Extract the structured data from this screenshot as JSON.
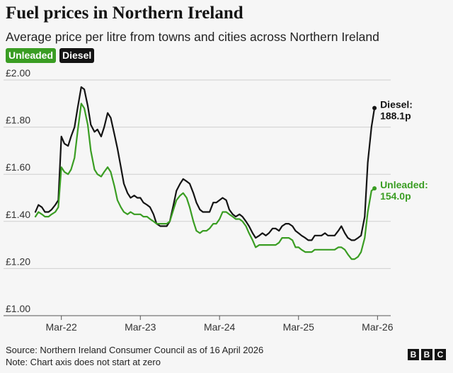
{
  "title": "Fuel prices in Northern Ireland",
  "subtitle": "Average price per litre from towns and cities across Northern Ireland",
  "legend": [
    {
      "label": "Unleaded",
      "color": "#3a9d23"
    },
    {
      "label": "Diesel",
      "color": "#141414"
    }
  ],
  "footer": {
    "source": "Source: Northern Ireland Consumer Council as of 16 April 2026",
    "note": "Note: Chart axis does not start at zero"
  },
  "logo": [
    "B",
    "B",
    "C"
  ],
  "chart_data": {
    "type": "line",
    "title": "Fuel prices in Northern Ireland",
    "subtitle": "Average price per litre from towns and cities across Northern Ireland",
    "xlabel": "",
    "ylabel": "",
    "ylim": [
      1.0,
      2.0
    ],
    "xlim": [
      "2021-11-01",
      "2026-05-01"
    ],
    "y_ticks": [
      {
        "value": 1.0,
        "label": "£1.00"
      },
      {
        "value": 1.2,
        "label": "£1.20"
      },
      {
        "value": 1.4,
        "label": "£1.40"
      },
      {
        "value": 1.6,
        "label": "£1.60"
      },
      {
        "value": 1.8,
        "label": "£1.80"
      },
      {
        "value": 2.0,
        "label": "£2.00"
      }
    ],
    "x_ticks": [
      {
        "value": "2022-03-01",
        "label": "Mar-22"
      },
      {
        "value": "2023-03-01",
        "label": "Mar-23"
      },
      {
        "value": "2024-03-01",
        "label": "Mar-24"
      },
      {
        "value": "2025-03-01",
        "label": "Mar-25"
      },
      {
        "value": "2026-03-01",
        "label": "Mar-26"
      }
    ],
    "grid": "horizontal",
    "series": [
      {
        "name": "Diesel",
        "color": "#141414",
        "end_label": [
          "Diesel:",
          "188.1p"
        ],
        "points": [
          [
            "2021-11-01",
            1.44
          ],
          [
            "2021-11-15",
            1.47
          ],
          [
            "2021-12-01",
            1.46
          ],
          [
            "2021-12-15",
            1.44
          ],
          [
            "2022-01-01",
            1.44
          ],
          [
            "2022-01-15",
            1.45
          ],
          [
            "2022-02-01",
            1.47
          ],
          [
            "2022-02-15",
            1.49
          ],
          [
            "2022-03-01",
            1.76
          ],
          [
            "2022-03-15",
            1.73
          ],
          [
            "2022-04-01",
            1.72
          ],
          [
            "2022-04-15",
            1.76
          ],
          [
            "2022-05-01",
            1.8
          ],
          [
            "2022-05-15",
            1.88
          ],
          [
            "2022-06-01",
            1.97
          ],
          [
            "2022-06-15",
            1.96
          ],
          [
            "2022-07-01",
            1.89
          ],
          [
            "2022-07-15",
            1.81
          ],
          [
            "2022-08-01",
            1.78
          ],
          [
            "2022-08-15",
            1.79
          ],
          [
            "2022-09-01",
            1.76
          ],
          [
            "2022-09-15",
            1.8
          ],
          [
            "2022-10-01",
            1.86
          ],
          [
            "2022-10-15",
            1.84
          ],
          [
            "2022-11-01",
            1.77
          ],
          [
            "2022-11-15",
            1.71
          ],
          [
            "2022-12-01",
            1.63
          ],
          [
            "2022-12-15",
            1.56
          ],
          [
            "2023-01-01",
            1.52
          ],
          [
            "2023-01-15",
            1.5
          ],
          [
            "2023-02-01",
            1.51
          ],
          [
            "2023-02-15",
            1.5
          ],
          [
            "2023-03-01",
            1.5
          ],
          [
            "2023-03-15",
            1.48
          ],
          [
            "2023-04-01",
            1.47
          ],
          [
            "2023-04-15",
            1.46
          ],
          [
            "2023-05-01",
            1.43
          ],
          [
            "2023-05-15",
            1.39
          ],
          [
            "2023-06-01",
            1.38
          ],
          [
            "2023-06-15",
            1.38
          ],
          [
            "2023-07-01",
            1.38
          ],
          [
            "2023-07-15",
            1.4
          ],
          [
            "2023-08-01",
            1.47
          ],
          [
            "2023-08-15",
            1.53
          ],
          [
            "2023-09-01",
            1.56
          ],
          [
            "2023-09-15",
            1.58
          ],
          [
            "2023-10-01",
            1.57
          ],
          [
            "2023-10-15",
            1.56
          ],
          [
            "2023-11-01",
            1.52
          ],
          [
            "2023-11-15",
            1.48
          ],
          [
            "2023-12-01",
            1.45
          ],
          [
            "2023-12-15",
            1.44
          ],
          [
            "2024-01-01",
            1.44
          ],
          [
            "2024-01-15",
            1.44
          ],
          [
            "2024-02-01",
            1.48
          ],
          [
            "2024-02-15",
            1.48
          ],
          [
            "2024-03-01",
            1.49
          ],
          [
            "2024-03-15",
            1.5
          ],
          [
            "2024-04-01",
            1.49
          ],
          [
            "2024-04-15",
            1.45
          ],
          [
            "2024-05-01",
            1.43
          ],
          [
            "2024-05-15",
            1.42
          ],
          [
            "2024-06-01",
            1.43
          ],
          [
            "2024-06-15",
            1.42
          ],
          [
            "2024-07-01",
            1.4
          ],
          [
            "2024-07-15",
            1.38
          ],
          [
            "2024-08-01",
            1.35
          ],
          [
            "2024-08-15",
            1.33
          ],
          [
            "2024-09-01",
            1.34
          ],
          [
            "2024-09-15",
            1.35
          ],
          [
            "2024-10-01",
            1.34
          ],
          [
            "2024-10-15",
            1.35
          ],
          [
            "2024-11-01",
            1.37
          ],
          [
            "2024-11-15",
            1.37
          ],
          [
            "2024-12-01",
            1.36
          ],
          [
            "2024-12-15",
            1.38
          ],
          [
            "2025-01-01",
            1.39
          ],
          [
            "2025-01-15",
            1.39
          ],
          [
            "2025-02-01",
            1.38
          ],
          [
            "2025-02-15",
            1.36
          ],
          [
            "2025-03-01",
            1.35
          ],
          [
            "2025-03-15",
            1.34
          ],
          [
            "2025-04-01",
            1.33
          ],
          [
            "2025-04-15",
            1.32
          ],
          [
            "2025-05-01",
            1.32
          ],
          [
            "2025-05-15",
            1.34
          ],
          [
            "2025-06-01",
            1.34
          ],
          [
            "2025-06-15",
            1.34
          ],
          [
            "2025-07-01",
            1.35
          ],
          [
            "2025-07-15",
            1.34
          ],
          [
            "2025-08-01",
            1.34
          ],
          [
            "2025-08-15",
            1.34
          ],
          [
            "2025-09-01",
            1.36
          ],
          [
            "2025-09-15",
            1.38
          ],
          [
            "2025-10-01",
            1.35
          ],
          [
            "2025-10-15",
            1.33
          ],
          [
            "2025-11-01",
            1.32
          ],
          [
            "2025-11-15",
            1.32
          ],
          [
            "2025-12-01",
            1.33
          ],
          [
            "2025-12-15",
            1.34
          ],
          [
            "2026-01-01",
            1.42
          ],
          [
            "2026-01-15",
            1.65
          ],
          [
            "2026-02-01",
            1.8
          ],
          [
            "2026-02-15",
            1.881
          ]
        ]
      },
      {
        "name": "Unleaded",
        "color": "#3a9d23",
        "end_label": [
          "Unleaded:",
          "154.0p"
        ],
        "points": [
          [
            "2021-11-01",
            1.42
          ],
          [
            "2021-11-15",
            1.44
          ],
          [
            "2021-12-01",
            1.43
          ],
          [
            "2021-12-15",
            1.42
          ],
          [
            "2022-01-01",
            1.42
          ],
          [
            "2022-01-15",
            1.43
          ],
          [
            "2022-02-01",
            1.44
          ],
          [
            "2022-02-15",
            1.46
          ],
          [
            "2022-03-01",
            1.63
          ],
          [
            "2022-03-15",
            1.61
          ],
          [
            "2022-04-01",
            1.6
          ],
          [
            "2022-04-15",
            1.62
          ],
          [
            "2022-05-01",
            1.67
          ],
          [
            "2022-05-15",
            1.78
          ],
          [
            "2022-06-01",
            1.9
          ],
          [
            "2022-06-15",
            1.88
          ],
          [
            "2022-07-01",
            1.81
          ],
          [
            "2022-07-15",
            1.7
          ],
          [
            "2022-08-01",
            1.62
          ],
          [
            "2022-08-15",
            1.6
          ],
          [
            "2022-09-01",
            1.59
          ],
          [
            "2022-09-15",
            1.61
          ],
          [
            "2022-10-01",
            1.63
          ],
          [
            "2022-10-15",
            1.61
          ],
          [
            "2022-11-01",
            1.55
          ],
          [
            "2022-11-15",
            1.49
          ],
          [
            "2022-12-01",
            1.46
          ],
          [
            "2022-12-15",
            1.44
          ],
          [
            "2023-01-01",
            1.43
          ],
          [
            "2023-01-15",
            1.44
          ],
          [
            "2023-02-01",
            1.43
          ],
          [
            "2023-02-15",
            1.43
          ],
          [
            "2023-03-01",
            1.43
          ],
          [
            "2023-03-15",
            1.42
          ],
          [
            "2023-04-01",
            1.42
          ],
          [
            "2023-04-15",
            1.41
          ],
          [
            "2023-05-01",
            1.4
          ],
          [
            "2023-05-15",
            1.39
          ],
          [
            "2023-06-01",
            1.39
          ],
          [
            "2023-06-15",
            1.39
          ],
          [
            "2023-07-01",
            1.39
          ],
          [
            "2023-07-15",
            1.4
          ],
          [
            "2023-08-01",
            1.45
          ],
          [
            "2023-08-15",
            1.49
          ],
          [
            "2023-09-01",
            1.51
          ],
          [
            "2023-09-15",
            1.52
          ],
          [
            "2023-10-01",
            1.5
          ],
          [
            "2023-10-15",
            1.46
          ],
          [
            "2023-11-01",
            1.4
          ],
          [
            "2023-11-15",
            1.36
          ],
          [
            "2023-12-01",
            1.35
          ],
          [
            "2023-12-15",
            1.36
          ],
          [
            "2024-01-01",
            1.36
          ],
          [
            "2024-01-15",
            1.37
          ],
          [
            "2024-02-01",
            1.39
          ],
          [
            "2024-02-15",
            1.39
          ],
          [
            "2024-03-01",
            1.41
          ],
          [
            "2024-03-15",
            1.44
          ],
          [
            "2024-04-01",
            1.44
          ],
          [
            "2024-04-15",
            1.43
          ],
          [
            "2024-05-01",
            1.42
          ],
          [
            "2024-05-15",
            1.41
          ],
          [
            "2024-06-01",
            1.41
          ],
          [
            "2024-06-15",
            1.4
          ],
          [
            "2024-07-01",
            1.38
          ],
          [
            "2024-07-15",
            1.35
          ],
          [
            "2024-08-01",
            1.32
          ],
          [
            "2024-08-15",
            1.29
          ],
          [
            "2024-09-01",
            1.3
          ],
          [
            "2024-09-15",
            1.3
          ],
          [
            "2024-10-01",
            1.3
          ],
          [
            "2024-10-15",
            1.3
          ],
          [
            "2024-11-01",
            1.3
          ],
          [
            "2024-11-15",
            1.3
          ],
          [
            "2024-12-01",
            1.31
          ],
          [
            "2024-12-15",
            1.33
          ],
          [
            "2025-01-01",
            1.33
          ],
          [
            "2025-01-15",
            1.33
          ],
          [
            "2025-02-01",
            1.32
          ],
          [
            "2025-02-15",
            1.29
          ],
          [
            "2025-03-01",
            1.29
          ],
          [
            "2025-03-15",
            1.28
          ],
          [
            "2025-04-01",
            1.27
          ],
          [
            "2025-04-15",
            1.27
          ],
          [
            "2025-05-01",
            1.27
          ],
          [
            "2025-05-15",
            1.28
          ],
          [
            "2025-06-01",
            1.28
          ],
          [
            "2025-06-15",
            1.28
          ],
          [
            "2025-07-01",
            1.28
          ],
          [
            "2025-07-15",
            1.28
          ],
          [
            "2025-08-01",
            1.28
          ],
          [
            "2025-08-15",
            1.28
          ],
          [
            "2025-09-01",
            1.29
          ],
          [
            "2025-09-15",
            1.29
          ],
          [
            "2025-10-01",
            1.28
          ],
          [
            "2025-10-15",
            1.26
          ],
          [
            "2025-11-01",
            1.24
          ],
          [
            "2025-11-15",
            1.24
          ],
          [
            "2025-12-01",
            1.25
          ],
          [
            "2025-12-15",
            1.27
          ],
          [
            "2026-01-01",
            1.33
          ],
          [
            "2026-01-15",
            1.44
          ],
          [
            "2026-02-01",
            1.53
          ],
          [
            "2026-02-15",
            1.54
          ]
        ]
      }
    ]
  }
}
